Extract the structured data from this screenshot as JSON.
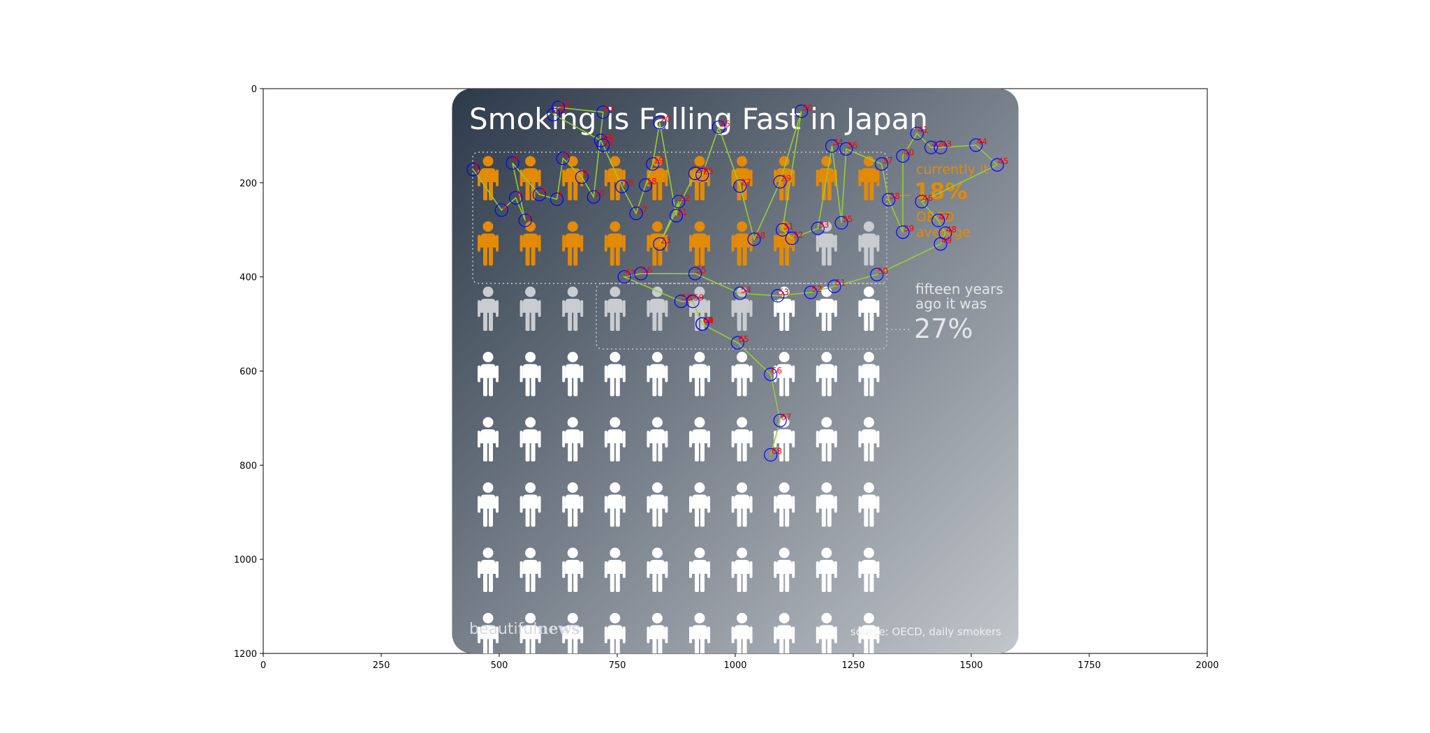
{
  "figure": {
    "title": "Smoking is Falling Fast in Japan",
    "logo_light": "beautiful",
    "logo_bold": "news",
    "source": "source: OECD, daily smokers",
    "current_label_line1": "currently it",
    "current_value": "18%",
    "average_label_line1": "OECD",
    "average_label_line2": "average",
    "past_label_line1": "fifteen years",
    "past_label_line2": "ago it was",
    "past_value": "27%",
    "colors": {
      "panel_dark": "#2d3a4a",
      "panel_light": "#c2c6cb",
      "smoker": "#e38a06",
      "past_smoker": "#c9ccd0",
      "non_smoker": "#ffffff",
      "trace_line": "#9acd32",
      "trace_marker": "#0000ff",
      "trace_label": "#ff0000"
    }
  },
  "chart_data": {
    "type": "scatter",
    "xlim": [
      0,
      2000
    ],
    "ylim": [
      1200,
      0
    ],
    "xticks": [
      "0",
      "250",
      "500",
      "750",
      "1000",
      "1250",
      "1500",
      "1750",
      "2000"
    ],
    "yticks": [
      "0",
      "200",
      "400",
      "600",
      "800",
      "1000",
      "1200"
    ],
    "icon_grid": {
      "rows": 8,
      "cols": 10,
      "current_smokers": 18,
      "past_smokers": 27
    },
    "points": [
      {
        "label": "1",
        "x": 445,
        "y": 172
      },
      {
        "label": "2",
        "x": 505,
        "y": 258
      },
      {
        "label": "3",
        "x": 535,
        "y": 232
      },
      {
        "label": "4",
        "x": 555,
        "y": 280
      },
      {
        "label": "5",
        "x": 528,
        "y": 158
      },
      {
        "label": "6",
        "x": 585,
        "y": 225
      },
      {
        "label": "7",
        "x": 622,
        "y": 235
      },
      {
        "label": "8",
        "x": 635,
        "y": 148
      },
      {
        "label": "9",
        "x": 675,
        "y": 188
      },
      {
        "label": "10",
        "x": 700,
        "y": 230
      },
      {
        "label": "11",
        "x": 720,
        "y": 50
      },
      {
        "label": "12",
        "x": 625,
        "y": 40
      },
      {
        "label": "13",
        "x": 615,
        "y": 55
      },
      {
        "label": "14",
        "x": 715,
        "y": 110
      },
      {
        "label": "15",
        "x": 720,
        "y": 120
      },
      {
        "label": "16",
        "x": 760,
        "y": 208
      },
      {
        "label": "17",
        "x": 790,
        "y": 265
      },
      {
        "label": "18",
        "x": 810,
        "y": 205
      },
      {
        "label": "19",
        "x": 825,
        "y": 160
      },
      {
        "label": "20",
        "x": 840,
        "y": 72
      },
      {
        "label": "21",
        "x": 875,
        "y": 270
      },
      {
        "label": "22",
        "x": 880,
        "y": 240
      },
      {
        "label": "23",
        "x": 840,
        "y": 330
      },
      {
        "label": "24",
        "x": 915,
        "y": 180
      },
      {
        "label": "25",
        "x": 930,
        "y": 183
      },
      {
        "label": "26",
        "x": 965,
        "y": 82
      },
      {
        "label": "27",
        "x": 1010,
        "y": 207
      },
      {
        "label": "28",
        "x": 1040,
        "y": 320
      },
      {
        "label": "29",
        "x": 1095,
        "y": 198
      },
      {
        "label": "30",
        "x": 1140,
        "y": 48
      },
      {
        "label": "31",
        "x": 1100,
        "y": 300
      },
      {
        "label": "32",
        "x": 1120,
        "y": 318
      },
      {
        "label": "33",
        "x": 1175,
        "y": 297
      },
      {
        "label": "34",
        "x": 1205,
        "y": 122
      },
      {
        "label": "35",
        "x": 1225,
        "y": 285
      },
      {
        "label": "36",
        "x": 1235,
        "y": 128
      },
      {
        "label": "37",
        "x": 1310,
        "y": 160
      },
      {
        "label": "38",
        "x": 1325,
        "y": 236
      },
      {
        "label": "39",
        "x": 1355,
        "y": 305
      },
      {
        "label": "40",
        "x": 1355,
        "y": 143
      },
      {
        "label": "41",
        "x": 1385,
        "y": 95
      },
      {
        "label": "42",
        "x": 1415,
        "y": 125
      },
      {
        "label": "43",
        "x": 1435,
        "y": 125
      },
      {
        "label": "44",
        "x": 1510,
        "y": 120
      },
      {
        "label": "45",
        "x": 1555,
        "y": 162
      },
      {
        "label": "46",
        "x": 1395,
        "y": 240
      },
      {
        "label": "47",
        "x": 1430,
        "y": 280
      },
      {
        "label": "48",
        "x": 1445,
        "y": 307
      },
      {
        "label": "49",
        "x": 1435,
        "y": 330
      },
      {
        "label": "50",
        "x": 1300,
        "y": 395
      },
      {
        "label": "51",
        "x": 1210,
        "y": 420
      },
      {
        "label": "52",
        "x": 1160,
        "y": 433
      },
      {
        "label": "53",
        "x": 1090,
        "y": 440
      },
      {
        "label": "54",
        "x": 1010,
        "y": 435
      },
      {
        "label": "55",
        "x": 915,
        "y": 393
      },
      {
        "label": "56",
        "x": 800,
        "y": 393
      },
      {
        "label": "57",
        "x": 765,
        "y": 400
      },
      {
        "label": "58",
        "x": 885,
        "y": 452
      },
      {
        "label": "59",
        "x": 910,
        "y": 452
      },
      {
        "label": "60",
        "x": 930,
        "y": 500
      },
      {
        "label": "61",
        "x": 930,
        "y": 500
      },
      {
        "label": "62",
        "x": 930,
        "y": 500
      },
      {
        "label": "63",
        "x": 930,
        "y": 500
      },
      {
        "label": "64",
        "x": 930,
        "y": 500
      },
      {
        "label": "65",
        "x": 1005,
        "y": 540
      },
      {
        "label": "66",
        "x": 1075,
        "y": 607
      },
      {
        "label": "67",
        "x": 1095,
        "y": 705
      },
      {
        "label": "68",
        "x": 1075,
        "y": 778
      }
    ]
  }
}
